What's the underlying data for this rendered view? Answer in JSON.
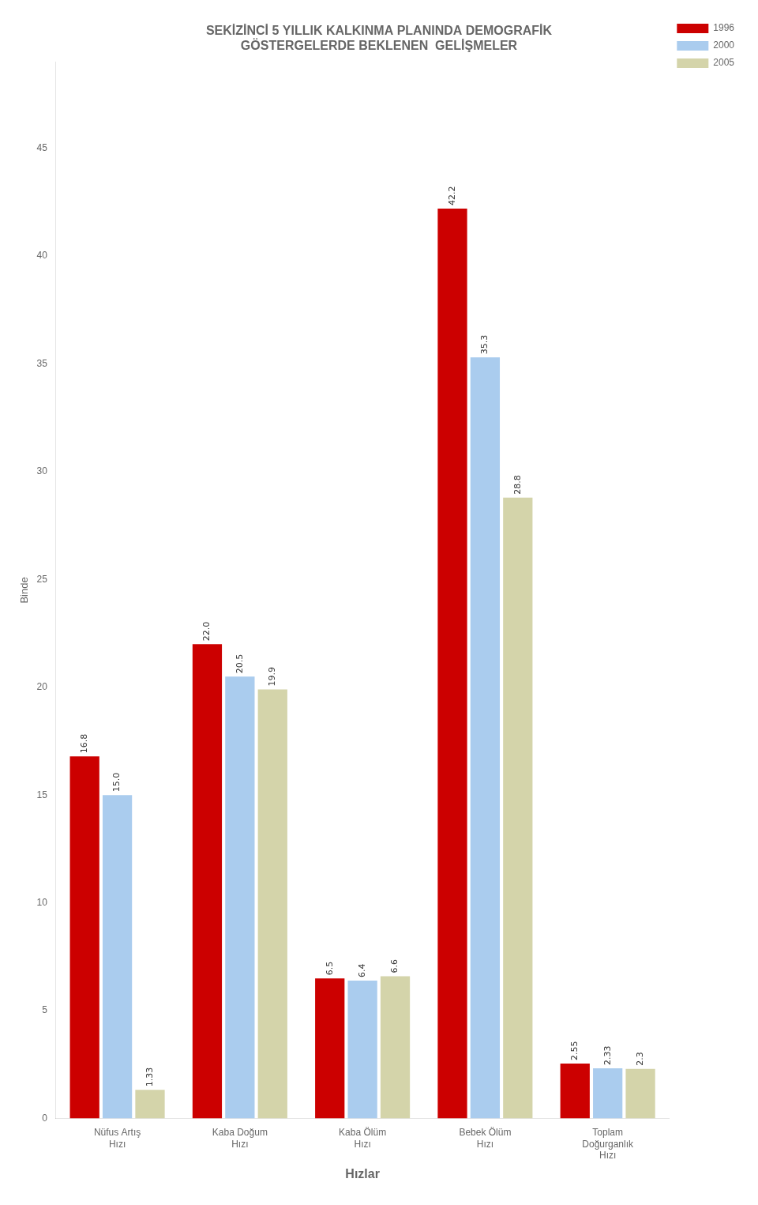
{
  "chart_data": {
    "type": "bar",
    "title": "SEKİZİNCİ 5 YILLIK KALKINMA PLANINDA DEMOGRAFİK\nGÖSTERGELERDE BEKLENEN  GELİŞMELER",
    "x_label": "Hızlar",
    "y_label": "Binde",
    "categories": [
      "Nüfus Artış\nHızı",
      "Kaba Doğum\nHızı",
      "Kaba Ölüm\nHızı",
      "Bebek Ölüm\nHızı",
      "Toplam\nDoğurganlık\nHızı"
    ],
    "series": [
      {
        "name": "1996",
        "color": "#cc0000",
        "values": [
          16.8,
          22.0,
          6.5,
          42.2,
          2.55
        ],
        "value_labels": [
          "16.8",
          "22.0",
          "6.5",
          "42.2",
          "2.55"
        ]
      },
      {
        "name": "2000",
        "color": "#aaccee",
        "values": [
          15.0,
          20.5,
          6.4,
          35.3,
          2.33
        ],
        "value_labels": [
          "15.0",
          "20.5",
          "6.4",
          "35.3",
          "2.33"
        ]
      },
      {
        "name": "2005",
        "color": "#d4d4aa",
        "values": [
          1.33,
          19.9,
          6.6,
          28.8,
          2.3
        ],
        "value_labels": [
          "1.33",
          "19.9",
          "6.6",
          "28.8",
          "2.3"
        ]
      }
    ],
    "ylim": [
      0,
      49
    ],
    "yticks": [
      0,
      5,
      10,
      15,
      20,
      25,
      30,
      35,
      40,
      45
    ],
    "grid": false,
    "legend": "upper right",
    "data_labels": true
  }
}
